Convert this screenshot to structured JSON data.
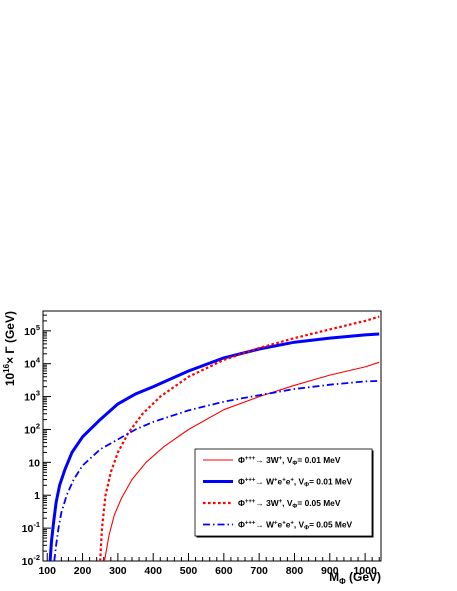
{
  "chart_data": {
    "type": "line",
    "xlabel": {
      "main": "M",
      "sub": "Φ",
      "unit": " (GeV)"
    },
    "ylabel": {
      "prefix": "10",
      "sup": "16",
      "rest": "× Γ (GeV)"
    },
    "xlim": [
      88,
      1045
    ],
    "ylim": [
      0.01,
      400000
    ],
    "yscale": "log",
    "x_ticks": [
      100,
      200,
      300,
      400,
      500,
      600,
      700,
      800,
      900,
      1000
    ],
    "y_ticks": [
      {
        "value": 0.01,
        "base": "10",
        "exp": "-2"
      },
      {
        "value": 0.1,
        "base": "10",
        "exp": "-1"
      },
      {
        "value": 1,
        "base": "1",
        "exp": ""
      },
      {
        "value": 10,
        "base": "10",
        "exp": ""
      },
      {
        "value": 100,
        "base": "10",
        "exp": "2"
      },
      {
        "value": 1000,
        "base": "10",
        "exp": "3"
      },
      {
        "value": 10000,
        "base": "10",
        "exp": "4"
      },
      {
        "value": 100000,
        "base": "10",
        "exp": "5"
      }
    ],
    "grid": false,
    "legend_position": "lower-right",
    "series": [
      {
        "name": "Φ⁺⁺⁺→ 3W⁺, V_Φ= 0.01 MeV",
        "legend": {
          "parts": [
            "Φ",
            "+++",
            "→ 3W",
            "+",
            ", V",
            "Φ",
            "= 0.01 MeV"
          ]
        },
        "color": "#ff0000",
        "style": "solid",
        "width": 1.1,
        "x": [
          262,
          275,
          290,
          310,
          340,
          380,
          430,
          500,
          600,
          700,
          800,
          900,
          1000,
          1040
        ],
        "y": [
          0.01,
          0.06,
          0.25,
          0.8,
          3,
          10,
          30,
          100,
          400,
          1000,
          2200,
          4500,
          8000,
          11000
        ]
      },
      {
        "name": "Φ⁺⁺⁺→ W⁺e⁺e⁺, V_Φ= 0.01 MeV",
        "legend": {
          "parts": [
            "Φ",
            "+++",
            "→ W",
            "+",
            "e",
            "+",
            "e",
            "+",
            ", V",
            "Φ",
            "= 0.01 MeV"
          ]
        },
        "color": "#0000ff",
        "style": "solid",
        "width": 3,
        "x": [
          108,
          112,
          118,
          125,
          135,
          150,
          170,
          200,
          250,
          300,
          350,
          400,
          500,
          600,
          700,
          800,
          900,
          1000,
          1040
        ],
        "y": [
          0.01,
          0.04,
          0.15,
          0.6,
          2,
          6,
          20,
          60,
          200,
          600,
          1200,
          2000,
          6000,
          15000,
          28000,
          45000,
          60000,
          75000,
          80000
        ]
      },
      {
        "name": "Φ⁺⁺⁺→ 3W⁺, V_Φ= 0.05 MeV",
        "legend": {
          "parts": [
            "Φ",
            "+++",
            "→ 3W",
            "+",
            ", V",
            "Φ",
            "= 0.05 MeV"
          ]
        },
        "color": "#ff0000",
        "style": "dotted",
        "width": 2.2,
        "x": [
          250,
          255,
          265,
          280,
          300,
          330,
          370,
          420,
          500,
          600,
          700,
          800,
          900,
          1000,
          1040
        ],
        "y": [
          0.01,
          0.1,
          1,
          5,
          20,
          80,
          300,
          1000,
          4000,
          13000,
          30000,
          60000,
          110000,
          200000,
          270000
        ]
      },
      {
        "name": "Φ⁺⁺⁺→ W⁺e⁺e⁺, V_Φ= 0.05 MeV",
        "legend": {
          "parts": [
            "Φ",
            "+++",
            "→ W",
            "+",
            "e",
            "+",
            "e",
            "+",
            ", V",
            "Φ",
            "= 0.05 MeV"
          ]
        },
        "color": "#0000ff",
        "style": "dashdot",
        "width": 1.8,
        "x": [
          120,
          125,
          132,
          140,
          155,
          175,
          200,
          250,
          300,
          350,
          400,
          500,
          600,
          700,
          800,
          900,
          1000,
          1040
        ],
        "y": [
          0.01,
          0.03,
          0.1,
          0.3,
          1,
          3,
          8,
          25,
          50,
          100,
          170,
          380,
          700,
          1100,
          1700,
          2300,
          2900,
          3000
        ]
      }
    ]
  }
}
